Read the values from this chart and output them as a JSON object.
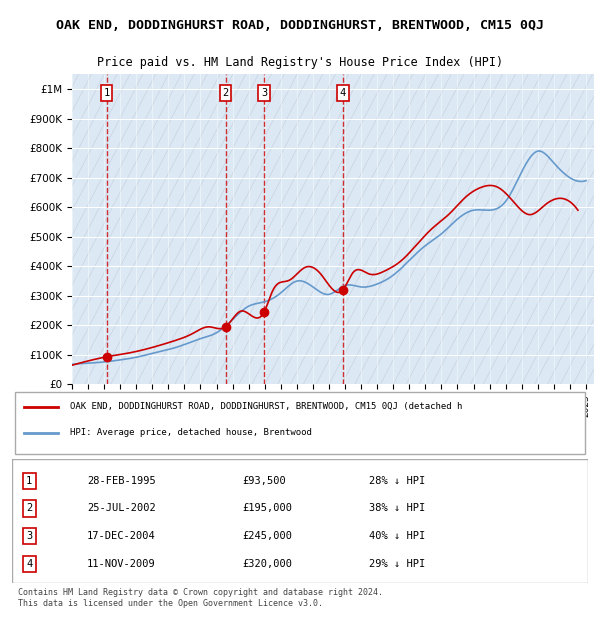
{
  "title": "OAK END, DODDINGHURST ROAD, DODDINGHURST, BRENTWOOD, CM15 0QJ",
  "subtitle": "Price paid vs. HM Land Registry's House Price Index (HPI)",
  "ylabel_ticks": [
    "£0",
    "£100K",
    "£200K",
    "£300K",
    "£400K",
    "£500K",
    "£600K",
    "£700K",
    "£800K",
    "£900K",
    "£1M"
  ],
  "ytick_values": [
    0,
    100000,
    200000,
    300000,
    400000,
    500000,
    600000,
    700000,
    800000,
    900000,
    1000000
  ],
  "ylim": [
    0,
    1050000
  ],
  "xlim_start": 1993.0,
  "xlim_end": 2025.5,
  "background_color": "#ffffff",
  "plot_bg_color": "#dce9f5",
  "hatch_color": "#c0c8d8",
  "grid_color": "#ffffff",
  "sale_color": "#cc0000",
  "hpi_color": "#6699cc",
  "legend_text_sale": "OAK END, DODDINGHURST ROAD, DODDINGHURST, BRENTWOOD, CM15 0QJ (detached h",
  "legend_text_hpi": "HPI: Average price, detached house, Brentwood",
  "footer": "Contains HM Land Registry data © Crown copyright and database right 2024.\nThis data is licensed under the Open Government Licence v3.0.",
  "transactions": [
    {
      "num": 1,
      "date": "28-FEB-1995",
      "price": 93500,
      "pct": "28% ↓ HPI",
      "year": 1995.15
    },
    {
      "num": 2,
      "date": "25-JUL-2002",
      "price": 195000,
      "pct": "38% ↓ HPI",
      "year": 2002.56
    },
    {
      "num": 3,
      "date": "17-DEC-2004",
      "price": 245000,
      "pct": "40% ↓ HPI",
      "year": 2004.96
    },
    {
      "num": 4,
      "date": "11-NOV-2009",
      "price": 320000,
      "pct": "29% ↓ HPI",
      "year": 2009.86
    }
  ],
  "hpi_years": [
    1993,
    1994,
    1995,
    1996,
    1997,
    1998,
    1999,
    2000,
    2001,
    2002,
    2003,
    2004,
    2005,
    2006,
    2007,
    2008,
    2009,
    2010,
    2011,
    2012,
    2013,
    2014,
    2015,
    2016,
    2017,
    2018,
    2019,
    2020,
    2021,
    2022,
    2023,
    2024,
    2025
  ],
  "hpi_values": [
    68000,
    72000,
    76000,
    83000,
    92000,
    105000,
    118000,
    135000,
    155000,
    175000,
    220000,
    265000,
    280000,
    310000,
    350000,
    330000,
    305000,
    335000,
    330000,
    340000,
    370000,
    420000,
    470000,
    510000,
    560000,
    590000,
    590000,
    620000,
    720000,
    790000,
    750000,
    700000,
    690000
  ],
  "sale_years": [
    1993.0,
    1995.15,
    1995.5,
    1996.5,
    1997.5,
    1998.5,
    1999.5,
    2000.5,
    2001.5,
    2002.56,
    2003.5,
    2004.96,
    2005.5,
    2006.5,
    2007.5,
    2008.5,
    2009.86,
    2010.5,
    2011.5,
    2012.5,
    2013.5,
    2014.5,
    2015.5,
    2016.5,
    2017.5,
    2018.5,
    2019.5,
    2020.5,
    2021.5,
    2022.5,
    2023.5,
    2024.5
  ],
  "sale_values": [
    65000,
    93500,
    97000,
    106000,
    118000,
    133000,
    150000,
    172000,
    195000,
    195000,
    248000,
    245000,
    318000,
    352000,
    396000,
    373000,
    320000,
    379000,
    374000,
    385000,
    419000,
    476000,
    532000,
    578000,
    634000,
    668000,
    668000,
    618000,
    575000,
    610000,
    630000,
    590000
  ]
}
